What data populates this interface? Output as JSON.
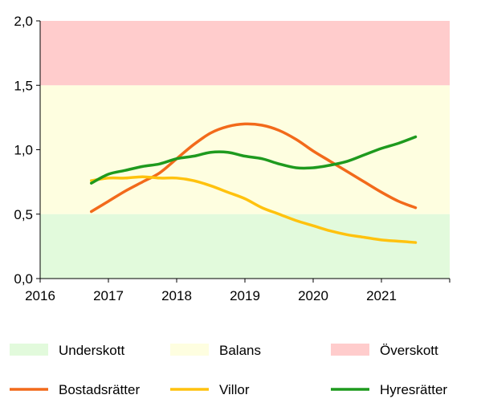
{
  "chart_data": {
    "type": "line",
    "ylim": [
      0,
      2.0
    ],
    "xlim": [
      2016,
      2022
    ],
    "y_ticks": [
      "0,0",
      "0,5",
      "1,0",
      "1,5",
      "2,0"
    ],
    "y_tick_values": [
      0,
      0.5,
      1.0,
      1.5,
      2.0
    ],
    "x_ticks": [
      "2016",
      "2017",
      "2018",
      "2019",
      "2020",
      "2021"
    ],
    "x_tick_values": [
      2016,
      2017,
      2018,
      2019,
      2020,
      2021
    ],
    "grid": false,
    "legend_position": "bottom",
    "bands": [
      {
        "name": "Underskott",
        "from": 0,
        "to": 0.5,
        "color": "#e2fadc"
      },
      {
        "name": "Balans",
        "from": 0.5,
        "to": 1.5,
        "color": "#fefee0"
      },
      {
        "name": "Överskott",
        "from": 1.5,
        "to": 2.0,
        "color": "#ffcccc"
      }
    ],
    "series": [
      {
        "name": "Bostadsrätter",
        "color": "#f26a1b",
        "x": [
          2016.75,
          2017.0,
          2017.25,
          2017.5,
          2017.75,
          2018.0,
          2018.25,
          2018.5,
          2018.75,
          2019.0,
          2019.25,
          2019.5,
          2019.75,
          2020.0,
          2020.25,
          2020.5,
          2020.75,
          2021.0,
          2021.25,
          2021.5
        ],
        "y": [
          0.52,
          0.6,
          0.68,
          0.75,
          0.82,
          0.93,
          1.04,
          1.13,
          1.18,
          1.2,
          1.19,
          1.15,
          1.08,
          0.99,
          0.91,
          0.83,
          0.75,
          0.67,
          0.6,
          0.55
        ]
      },
      {
        "name": "Villor",
        "color": "#ffc20e",
        "x": [
          2016.75,
          2017.0,
          2017.25,
          2017.5,
          2017.75,
          2018.0,
          2018.25,
          2018.5,
          2018.75,
          2019.0,
          2019.25,
          2019.5,
          2019.75,
          2020.0,
          2020.25,
          2020.5,
          2020.75,
          2021.0,
          2021.25,
          2021.5
        ],
        "y": [
          0.76,
          0.78,
          0.78,
          0.79,
          0.78,
          0.78,
          0.76,
          0.72,
          0.67,
          0.62,
          0.55,
          0.5,
          0.45,
          0.41,
          0.37,
          0.34,
          0.32,
          0.3,
          0.29,
          0.28
        ]
      },
      {
        "name": "Hyresrätter",
        "color": "#1e9a1e",
        "x": [
          2016.75,
          2017.0,
          2017.25,
          2017.5,
          2017.75,
          2018.0,
          2018.25,
          2018.5,
          2018.75,
          2019.0,
          2019.25,
          2019.5,
          2019.75,
          2020.0,
          2020.25,
          2020.5,
          2020.75,
          2021.0,
          2021.25,
          2021.5
        ],
        "y": [
          0.74,
          0.81,
          0.84,
          0.87,
          0.89,
          0.93,
          0.95,
          0.98,
          0.98,
          0.95,
          0.93,
          0.89,
          0.86,
          0.86,
          0.88,
          0.91,
          0.96,
          1.01,
          1.05,
          1.1
        ]
      }
    ]
  }
}
